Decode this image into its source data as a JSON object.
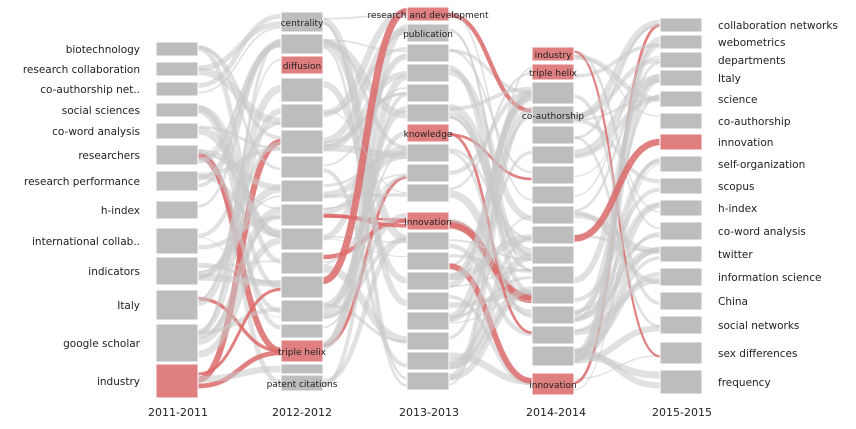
{
  "colors": {
    "node": "#bdbdbd",
    "highlight": "#e07f7f",
    "flow": "#c9c9c9",
    "highlight_flow": "#dc6a6a"
  },
  "columns": [
    {
      "year": "2011-2011",
      "keywords": [
        "biotechnology",
        "research collaboration",
        "co-authorship net..",
        "social sciences",
        "co-word analysis",
        "researchers",
        "research performance",
        "h-index",
        "international collab..",
        "indicators",
        "Italy",
        "google scholar",
        "industry"
      ],
      "highlighted": [
        "industry"
      ]
    },
    {
      "year": "2012-2012",
      "keywords": [
        "centrality",
        "diffusion",
        "triple helix",
        "patent citations"
      ],
      "highlighted": [
        "diffusion",
        "triple helix"
      ]
    },
    {
      "year": "2013-2013",
      "keywords": [
        "research and development",
        "publication",
        "knowledge",
        "innovation"
      ],
      "highlighted": [
        "research and development",
        "knowledge",
        "innovation"
      ]
    },
    {
      "year": "2014-2014",
      "keywords": [
        "industry",
        "triple helix",
        "co-authorship",
        "innovation"
      ],
      "highlighted": [
        "industry",
        "triple helix",
        "innovation"
      ]
    },
    {
      "year": "2015-2015",
      "keywords": [
        "collaboration networks",
        "webometrics",
        "departments",
        "Italy",
        "science",
        "co-authorship",
        "innovation",
        "self-organization",
        "scopus",
        "h-index",
        "co-word analysis",
        "twitter",
        "information science",
        "China",
        "social networks",
        "sex differences",
        "frequency"
      ],
      "highlighted": [
        "innovation"
      ]
    }
  ]
}
